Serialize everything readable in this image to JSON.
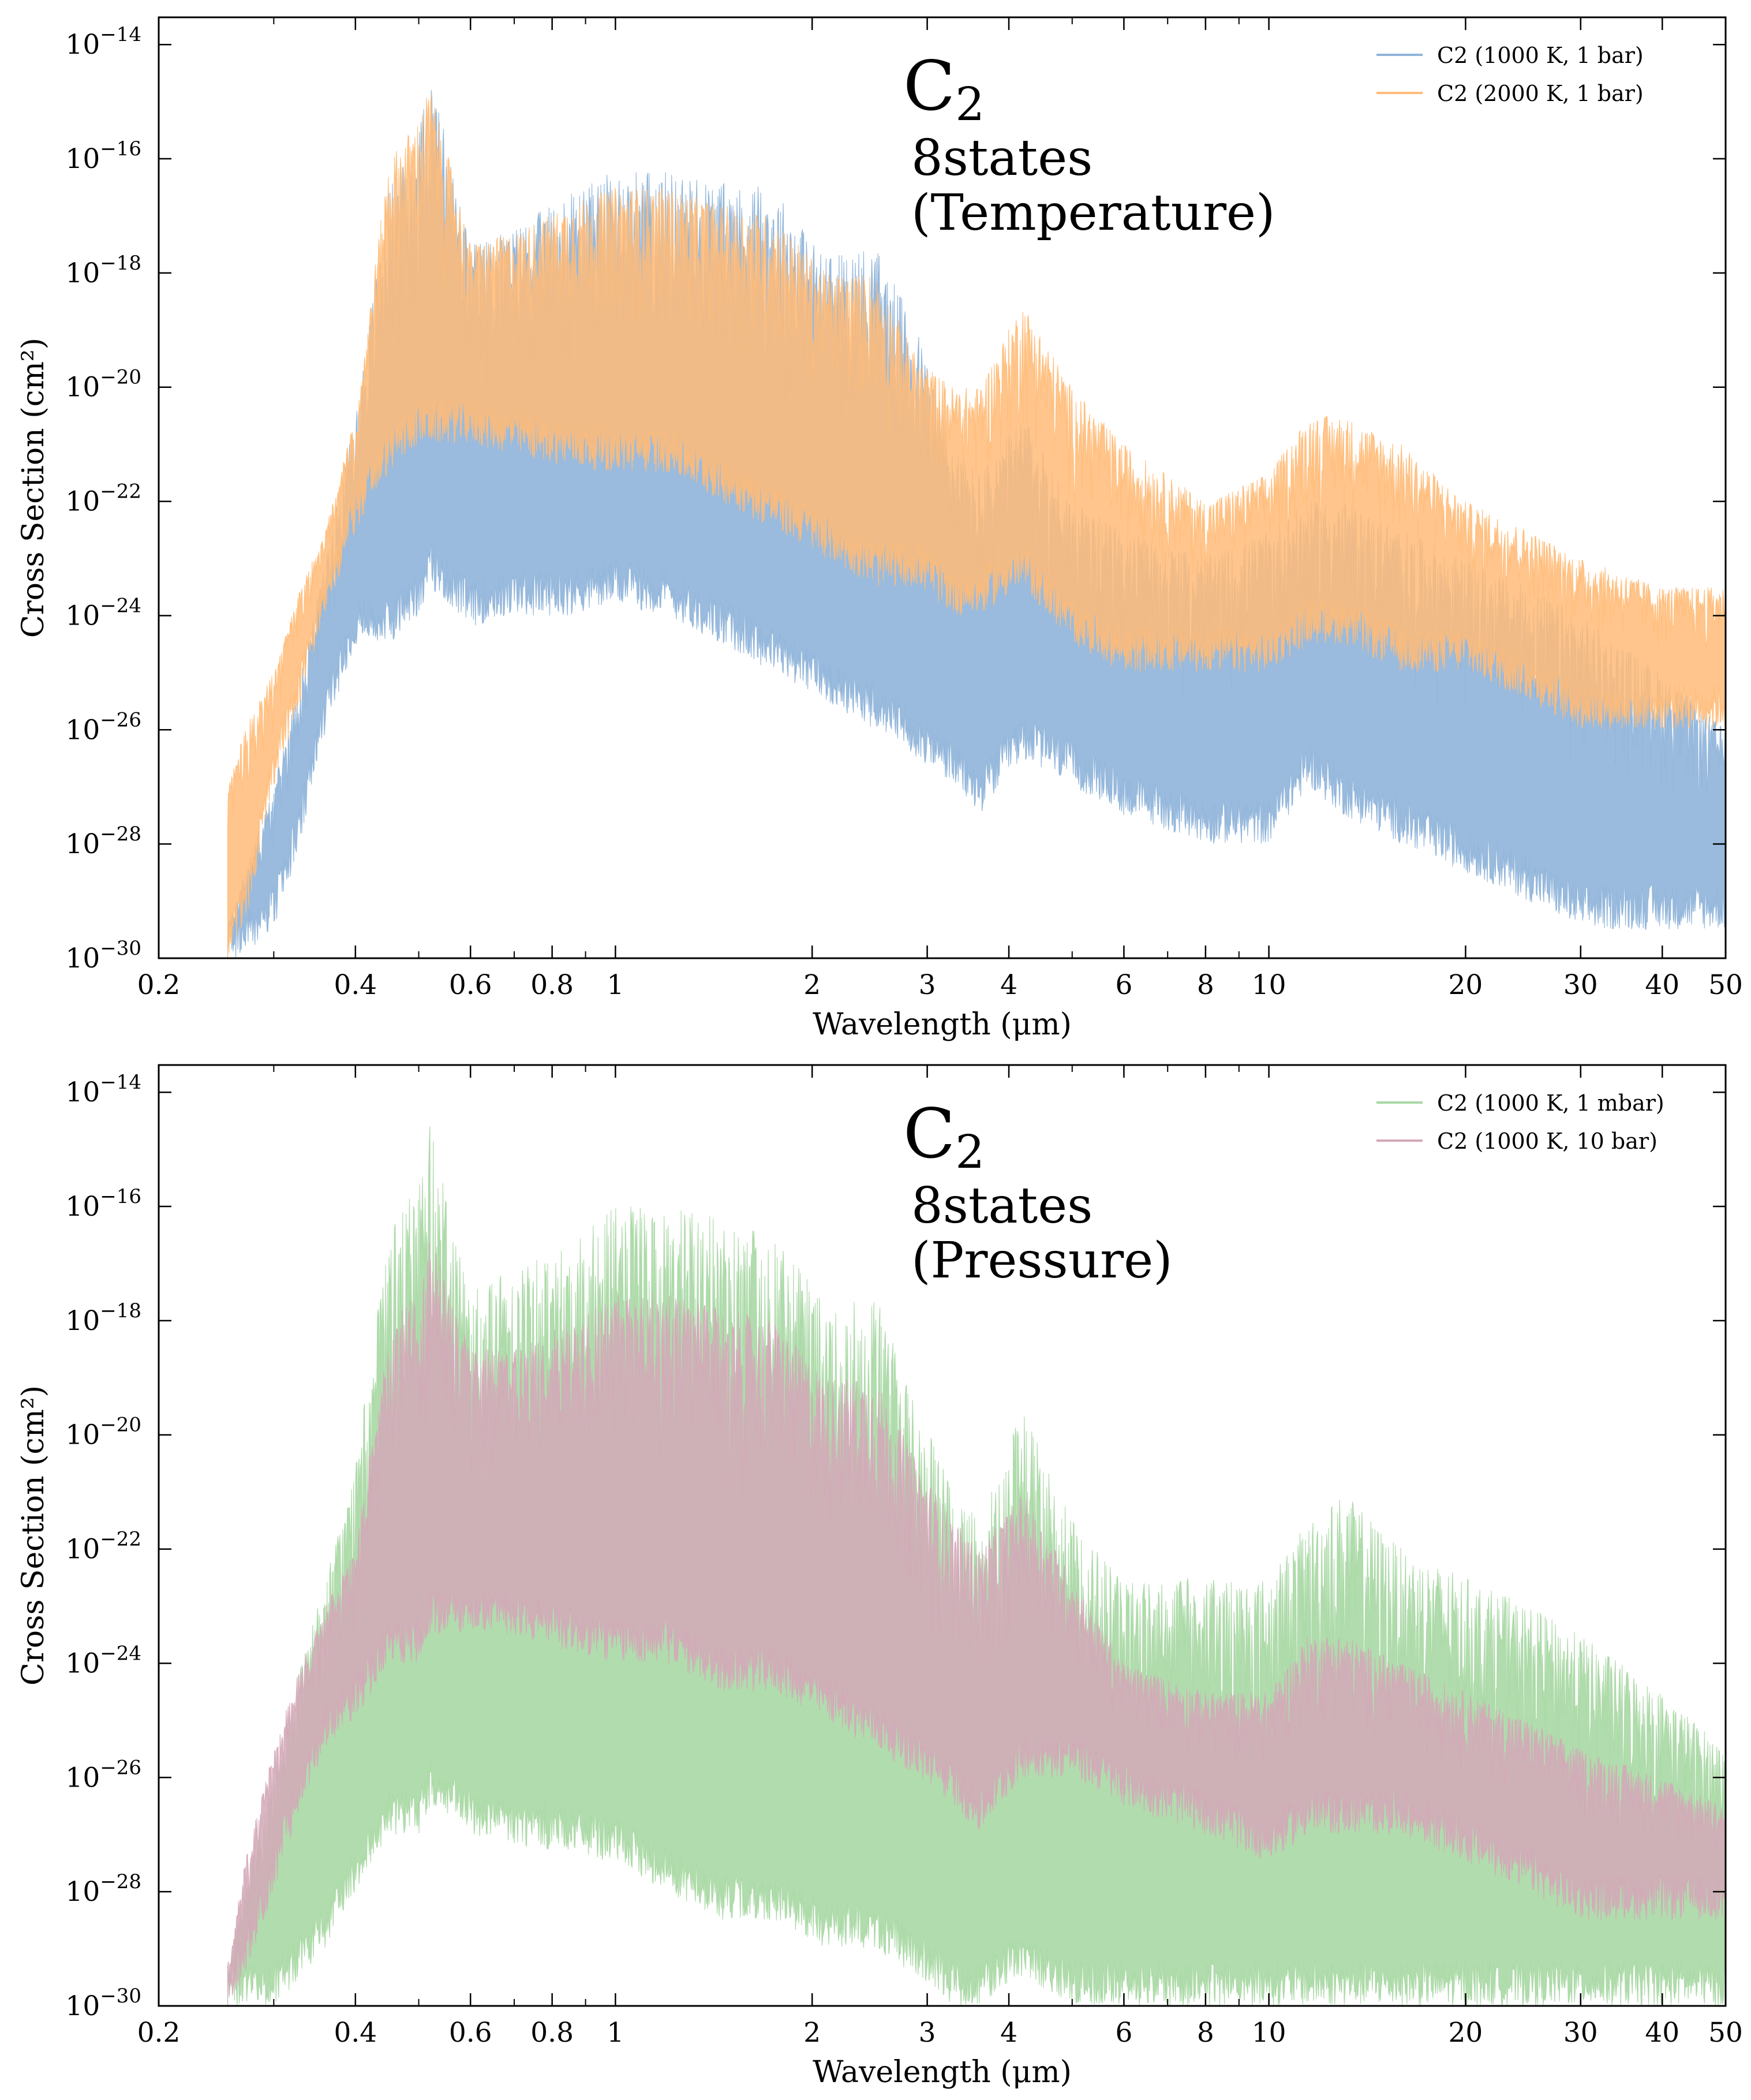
{
  "chart_data": [
    {
      "type": "area",
      "annotation": {
        "molecule": "C",
        "subscript": "2",
        "line1": "8states",
        "line2": "(Temperature)"
      },
      "xlabel": "Wavelength (μm)",
      "ylabel": "Cross Section (cm²)",
      "x_scale": "log",
      "y_scale": "log",
      "xlim": [
        0.2,
        50
      ],
      "ylim": [
        1e-30,
        3e-14
      ],
      "x_ticks": [
        0.2,
        0.4,
        0.6,
        0.8,
        1,
        2,
        3,
        4,
        6,
        8,
        10,
        20,
        30,
        40,
        50
      ],
      "x_tick_labels": [
        "0.2",
        "0.4",
        "0.6",
        "0.8",
        "1",
        "2",
        "3",
        "4",
        "6",
        "8",
        "10",
        "20",
        "30",
        "40",
        "50"
      ],
      "y_tick_exponents": [
        -30,
        -28,
        -26,
        -24,
        -22,
        -20,
        -18,
        -16,
        -14
      ],
      "y_tick_base": "10",
      "legend_position": "top-right",
      "series": [
        {
          "name": "C2 (1000 K, 1 bar)",
          "color": "#8fb4d9",
          "wavelength_um": [
            0.255,
            0.27,
            0.3,
            0.33,
            0.36,
            0.4,
            0.45,
            0.5,
            0.52,
            0.6,
            0.7,
            0.85,
            1.0,
            1.2,
            1.45,
            1.75,
            2.1,
            2.5,
            2.9,
            3.3,
            3.6,
            4.2,
            5.0,
            6.0,
            8.0,
            10.0,
            11.5,
            13,
            16,
            20,
            25,
            30,
            40,
            50
          ],
          "envelope_max_log10_cm2": [
            -29.5,
            -28.5,
            -27.0,
            -25.0,
            -23.0,
            -20.5,
            -16.5,
            -15.5,
            -14.4,
            -17.5,
            -17.2,
            -16.6,
            -16.2,
            -16.2,
            -16.4,
            -16.5,
            -17.7,
            -17.5,
            -19.0,
            -21.0,
            -21.5,
            -20.5,
            -22.0,
            -22.5,
            -23.0,
            -22.5,
            -22.0,
            -22.0,
            -22.5,
            -23.0,
            -23.5,
            -24.0,
            -25.0,
            -26.0
          ],
          "envelope_min_log10_cm2": [
            -30.0,
            -30.0,
            -29.5,
            -28.0,
            -26.0,
            -24.5,
            -24.5,
            -24.0,
            -23.5,
            -24.2,
            -24.0,
            -24.0,
            -23.8,
            -24.0,
            -24.5,
            -25.0,
            -25.5,
            -26.0,
            -26.5,
            -27.0,
            -27.5,
            -26.5,
            -27.0,
            -27.5,
            -28.0,
            -28.0,
            -27.0,
            -27.5,
            -28.0,
            -28.5,
            -29.0,
            -29.5,
            -29.5,
            -29.5
          ]
        },
        {
          "name": "C2 (2000 K, 1 bar)",
          "color": "#ffbb78",
          "wavelength_um": [
            0.255,
            0.27,
            0.3,
            0.33,
            0.36,
            0.4,
            0.45,
            0.5,
            0.52,
            0.6,
            0.7,
            0.85,
            1.0,
            1.2,
            1.45,
            1.75,
            2.1,
            2.5,
            2.9,
            3.3,
            3.6,
            4.2,
            5.0,
            6.0,
            8.0,
            10.0,
            11.5,
            13,
            16,
            20,
            25,
            30,
            40,
            50
          ],
          "envelope_max_log10_cm2": [
            -27.0,
            -26.0,
            -25.0,
            -23.5,
            -22.5,
            -20.5,
            -16.0,
            -15.3,
            -14.7,
            -17.5,
            -17.3,
            -16.8,
            -16.5,
            -16.5,
            -16.8,
            -17.0,
            -18.0,
            -18.0,
            -19.5,
            -20.0,
            -20.0,
            -18.5,
            -20.0,
            -21.0,
            -22.0,
            -21.5,
            -20.5,
            -20.5,
            -21.0,
            -22.0,
            -22.5,
            -23.0,
            -23.5,
            -23.5
          ],
          "envelope_min_log10_cm2": [
            -30.0,
            -29.5,
            -27.0,
            -25.5,
            -24.0,
            -22.5,
            -21.5,
            -21.0,
            -21.0,
            -21.0,
            -21.2,
            -21.4,
            -21.5,
            -21.5,
            -22.0,
            -22.5,
            -23.0,
            -23.5,
            -23.5,
            -24.0,
            -24.0,
            -23.5,
            -24.5,
            -25.0,
            -25.0,
            -25.0,
            -24.5,
            -24.5,
            -25.0,
            -25.0,
            -25.5,
            -26.0,
            -26.0,
            -26.0
          ]
        }
      ]
    },
    {
      "type": "area",
      "annotation": {
        "molecule": "C",
        "subscript": "2",
        "line1": "8states",
        "line2": "(Pressure)"
      },
      "xlabel": "Wavelength (μm)",
      "ylabel": "Cross Section (cm²)",
      "x_scale": "log",
      "y_scale": "log",
      "xlim": [
        0.2,
        50
      ],
      "ylim": [
        1e-30,
        3e-14
      ],
      "x_ticks": [
        0.2,
        0.4,
        0.6,
        0.8,
        1,
        2,
        3,
        4,
        6,
        8,
        10,
        20,
        30,
        40,
        50
      ],
      "x_tick_labels": [
        "0.2",
        "0.4",
        "0.6",
        "0.8",
        "1",
        "2",
        "3",
        "4",
        "6",
        "8",
        "10",
        "20",
        "30",
        "40",
        "50"
      ],
      "y_tick_exponents": [
        -30,
        -28,
        -26,
        -24,
        -22,
        -20,
        -18,
        -16,
        -14
      ],
      "y_tick_base": "10",
      "legend_position": "top-right",
      "series": [
        {
          "name": "C2 (1000 K, 1 mbar)",
          "color": "#a8d8a4",
          "wavelength_um": [
            0.255,
            0.27,
            0.3,
            0.33,
            0.36,
            0.4,
            0.45,
            0.5,
            0.52,
            0.6,
            0.7,
            0.85,
            1.0,
            1.2,
            1.45,
            1.75,
            2.1,
            2.5,
            2.9,
            3.3,
            3.6,
            4.2,
            5.0,
            6.0,
            8.0,
            10.0,
            11.5,
            13,
            16,
            20,
            25,
            30,
            40,
            50
          ],
          "envelope_max_log10_cm2": [
            -29.5,
            -28.0,
            -26.0,
            -24.0,
            -22.5,
            -20.5,
            -16.5,
            -15.5,
            -14.4,
            -17.5,
            -17.0,
            -16.5,
            -16.0,
            -16.0,
            -16.2,
            -16.5,
            -17.7,
            -17.5,
            -19.5,
            -21.0,
            -21.5,
            -19.5,
            -21.5,
            -22.5,
            -22.5,
            -22.5,
            -21.5,
            -21.0,
            -22.0,
            -22.5,
            -23.0,
            -23.5,
            -24.5,
            -25.5
          ],
          "envelope_min_log10_cm2": [
            -30.0,
            -30.0,
            -30.0,
            -29.5,
            -29.0,
            -28.0,
            -27.0,
            -27.0,
            -26.5,
            -27.0,
            -27.2,
            -27.3,
            -27.5,
            -28.0,
            -28.5,
            -28.5,
            -29.0,
            -29.0,
            -29.5,
            -30.0,
            -30.0,
            -29.5,
            -30.0,
            -30.0,
            -30.0,
            -30.0,
            -30.0,
            -30.0,
            -30.0,
            -30.0,
            -30.0,
            -30.0,
            -30.0,
            -30.0
          ]
        },
        {
          "name": "C2 (1000 K, 10 bar)",
          "color": "#d4a8b8",
          "wavelength_um": [
            0.255,
            0.27,
            0.3,
            0.33,
            0.36,
            0.4,
            0.45,
            0.5,
            0.52,
            0.6,
            0.7,
            0.85,
            1.0,
            1.2,
            1.45,
            1.75,
            2.1,
            2.5,
            2.9,
            3.3,
            3.6,
            4.2,
            5.0,
            6.0,
            8.0,
            10.0,
            11.5,
            13,
            16,
            20,
            25,
            30,
            40,
            50
          ],
          "envelope_max_log10_cm2": [
            -29.5,
            -27.5,
            -25.5,
            -24.0,
            -23.0,
            -22.0,
            -18.0,
            -17.5,
            -16.5,
            -18.5,
            -18.5,
            -18.0,
            -17.5,
            -17.5,
            -17.8,
            -18.0,
            -19.0,
            -19.0,
            -20.5,
            -21.5,
            -22.0,
            -21.0,
            -22.5,
            -24.0,
            -24.5,
            -24.5,
            -23.5,
            -23.5,
            -24.0,
            -24.5,
            -25.0,
            -25.5,
            -26.0,
            -26.5
          ],
          "envelope_min_log10_cm2": [
            -30.0,
            -29.5,
            -28.0,
            -26.5,
            -25.5,
            -25.0,
            -24.0,
            -24.0,
            -23.5,
            -23.5,
            -23.5,
            -23.8,
            -24.0,
            -24.0,
            -24.5,
            -24.5,
            -25.0,
            -25.5,
            -26.0,
            -26.5,
            -27.0,
            -26.0,
            -26.0,
            -26.5,
            -27.0,
            -27.5,
            -27.0,
            -27.0,
            -27.0,
            -27.5,
            -28.0,
            -28.5,
            -28.5,
            -28.5
          ]
        }
      ]
    }
  ]
}
